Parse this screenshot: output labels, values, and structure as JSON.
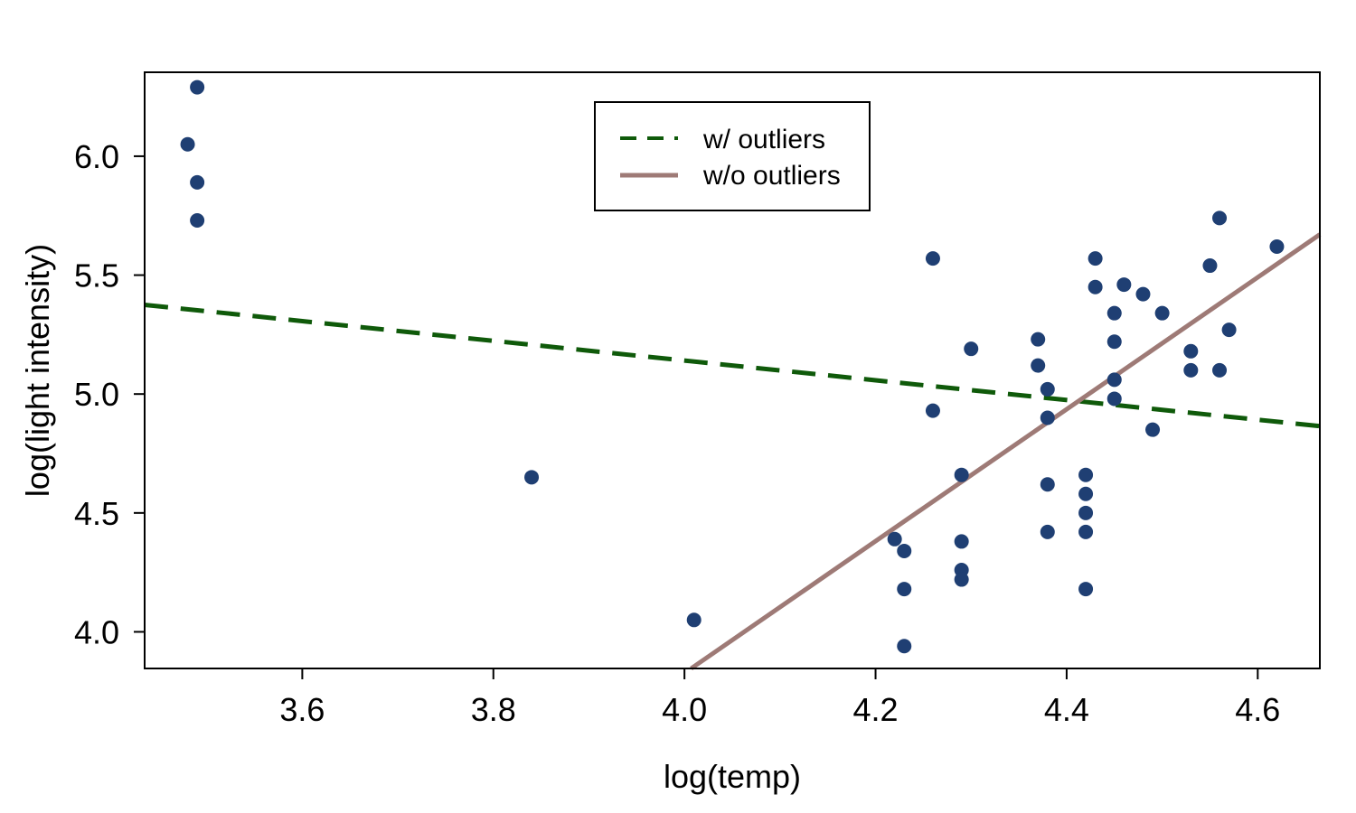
{
  "chart_data": {
    "type": "scatter",
    "title": "",
    "xlabel": "log(temp)",
    "ylabel": "log(light intensity)",
    "xlim": [
      3.435,
      4.665
    ],
    "ylim": [
      3.846,
      6.353
    ],
    "x_ticks": [
      3.6,
      3.8,
      4.0,
      4.2,
      4.4,
      4.6
    ],
    "x_tick_labels": [
      "3.6",
      "3.8",
      "4.0",
      "4.2",
      "4.4",
      "4.6"
    ],
    "y_ticks": [
      4.0,
      4.5,
      5.0,
      5.5,
      6.0
    ],
    "y_tick_labels": [
      "4.0",
      "4.5",
      "5.0",
      "5.5",
      "6.0"
    ],
    "grid": false,
    "legend_position": "top-center",
    "points": {
      "color": "#1f3f73",
      "data": [
        [
          3.48,
          6.05
        ],
        [
          3.49,
          6.29
        ],
        [
          3.49,
          5.89
        ],
        [
          3.49,
          5.73
        ],
        [
          3.84,
          4.65
        ],
        [
          4.01,
          4.05
        ],
        [
          4.22,
          4.39
        ],
        [
          4.23,
          4.34
        ],
        [
          4.23,
          4.18
        ],
        [
          4.23,
          3.94
        ],
        [
          4.26,
          5.57
        ],
        [
          4.26,
          4.93
        ],
        [
          4.29,
          4.66
        ],
        [
          4.29,
          4.38
        ],
        [
          4.29,
          4.26
        ],
        [
          4.29,
          4.22
        ],
        [
          4.3,
          5.19
        ],
        [
          4.37,
          5.23
        ],
        [
          4.37,
          5.12
        ],
        [
          4.38,
          5.02
        ],
        [
          4.38,
          4.9
        ],
        [
          4.38,
          4.62
        ],
        [
          4.38,
          4.42
        ],
        [
          4.42,
          4.66
        ],
        [
          4.42,
          4.58
        ],
        [
          4.42,
          4.5
        ],
        [
          4.42,
          4.42
        ],
        [
          4.42,
          4.18
        ],
        [
          4.43,
          5.57
        ],
        [
          4.43,
          5.45
        ],
        [
          4.45,
          5.34
        ],
        [
          4.45,
          5.22
        ],
        [
          4.45,
          5.06
        ],
        [
          4.45,
          4.98
        ],
        [
          4.46,
          5.46
        ],
        [
          4.48,
          5.42
        ],
        [
          4.49,
          4.85
        ],
        [
          4.5,
          5.34
        ],
        [
          4.53,
          5.18
        ],
        [
          4.53,
          5.1
        ],
        [
          4.55,
          5.54
        ],
        [
          4.56,
          5.74
        ],
        [
          4.56,
          5.1
        ],
        [
          4.57,
          5.27
        ],
        [
          4.62,
          5.62
        ]
      ]
    },
    "series": [
      {
        "name": "w/ outliers",
        "style": "dashed",
        "color": "#0f5a0a",
        "x": [
          3.435,
          4.665
        ],
        "y": [
          5.375,
          4.865
        ]
      },
      {
        "name": "w/o outliers",
        "style": "solid",
        "color": "#9e7a76",
        "x": [
          4.007,
          4.665
        ],
        "y": [
          3.846,
          5.671
        ]
      }
    ]
  }
}
